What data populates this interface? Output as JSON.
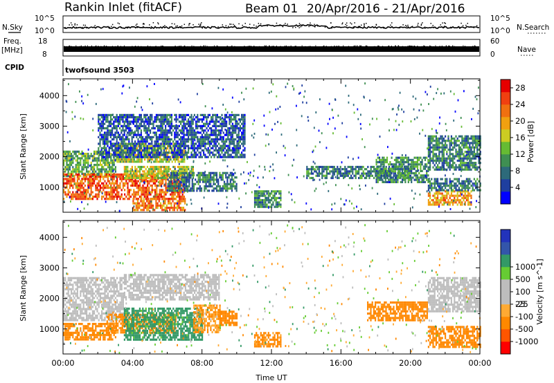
{
  "header": {
    "title": "Rankin Inlet (fitACF)",
    "beam": "Beam 01",
    "date_range": "20/Apr/2016 - 21/Apr/2016"
  },
  "params": {
    "nsky_label": "N.Sky",
    "nsky_ticks": [
      "10^5",
      "10^0"
    ],
    "nsearch_label": "N.Search",
    "nsearch_ticks": [
      "10^5",
      "10^0"
    ],
    "freq_label": "Freq.",
    "freq_unit": "[MHz]",
    "freq_ticks": [
      "18",
      "8"
    ],
    "nave_label": "Nave",
    "nave_ticks": [
      "60",
      "0"
    ],
    "cpid_label": "CPID",
    "cpid_value": "twofsound 3503"
  },
  "colors": {
    "power_scale": [
      "#0000ff",
      "#1f3f9f",
      "#2d6a7a",
      "#3f8f52",
      "#66bb33",
      "#cccc22",
      "#f0a010",
      "#f07010",
      "#f04010",
      "#e60000"
    ],
    "velocity_scale": [
      "#ff0000",
      "#ff5500",
      "#ff8800",
      "#ffaa33",
      "#bdbdbd",
      "#bdbdbd",
      "#66cc33",
      "#339966",
      "#3355aa",
      "#2233bb"
    ]
  },
  "chart_data": [
    {
      "type": "heatmap",
      "title": "Power",
      "xlabel": "",
      "ylabel": "Slant Range [km]",
      "xlim": [
        0,
        24
      ],
      "ylim": [
        180,
        4550
      ],
      "x_ticks": [
        "00:00",
        "04:00",
        "08:00",
        "12:00",
        "16:00",
        "20:00",
        "00:00"
      ],
      "x_tick_values": [
        0,
        4,
        8,
        12,
        16,
        20,
        24
      ],
      "y_ticks": [
        1000,
        2000,
        3000,
        4000
      ],
      "colorbar": {
        "label": "Power [dB]",
        "ticks": [
          4,
          8,
          12,
          16,
          20,
          24,
          28
        ],
        "range": [
          0,
          30
        ]
      },
      "regions": [
        {
          "x": [
            0.0,
            3.0
          ],
          "y": [
            1400,
            2200
          ],
          "value": 12
        },
        {
          "x": [
            0.0,
            7.0
          ],
          "y": [
            650,
            1450
          ],
          "value": 24
        },
        {
          "x": [
            3.5,
            7.5
          ],
          "y": [
            1300,
            1700
          ],
          "value": 16
        },
        {
          "x": [
            3.0,
            7.0
          ],
          "y": [
            1800,
            2450
          ],
          "value": 16
        },
        {
          "x": [
            6.0,
            10.0
          ],
          "y": [
            900,
            1500
          ],
          "value": 8
        },
        {
          "x": [
            2.0,
            10.5
          ],
          "y": [
            2000,
            3400
          ],
          "value": 6
        },
        {
          "x": [
            4.0,
            7.0
          ],
          "y": [
            250,
            650
          ],
          "value": 22
        },
        {
          "x": [
            11.0,
            12.5
          ],
          "y": [
            350,
            900
          ],
          "value": 10
        },
        {
          "x": [
            14.0,
            20.0
          ],
          "y": [
            1300,
            1700
          ],
          "value": 8
        },
        {
          "x": [
            18.0,
            21.0
          ],
          "y": [
            1200,
            2000
          ],
          "value": 10
        },
        {
          "x": [
            21.0,
            24.0
          ],
          "y": [
            1600,
            2700
          ],
          "value": 9
        },
        {
          "x": [
            21.0,
            23.5
          ],
          "y": [
            400,
            900
          ],
          "value": 20
        },
        {
          "x": [
            21.0,
            24.0
          ],
          "y": [
            900,
            1300
          ],
          "value": 8
        }
      ]
    },
    {
      "type": "heatmap",
      "title": "Velocity",
      "xlabel": "Time UT",
      "ylabel": "Slant Range [km]",
      "xlim": [
        0,
        24
      ],
      "ylim": [
        180,
        4550
      ],
      "x_ticks": [
        "00:00",
        "04:00",
        "08:00",
        "12:00",
        "16:00",
        "20:00",
        "00:00"
      ],
      "x_tick_values": [
        0,
        4,
        8,
        12,
        16,
        20,
        24
      ],
      "y_ticks": [
        1000,
        2000,
        3000,
        4000
      ],
      "colorbar": {
        "label": "Velocity [m s^-1]",
        "ticks": [
          -1000,
          -500,
          -100,
          -25,
          25,
          100,
          500,
          1000
        ]
      },
      "regions": [
        {
          "x": [
            0.0,
            3.5
          ],
          "y": [
            1300,
            2700
          ],
          "value": 0
        },
        {
          "x": [
            3.5,
            9.0
          ],
          "y": [
            2000,
            2800
          ],
          "value": 0
        },
        {
          "x": [
            0.0,
            3.0
          ],
          "y": [
            650,
            1200
          ],
          "value": -200
        },
        {
          "x": [
            2.5,
            6.5
          ],
          "y": [
            850,
            1500
          ],
          "value": -150
        },
        {
          "x": [
            3.5,
            8.0
          ],
          "y": [
            650,
            1700
          ],
          "value": 150
        },
        {
          "x": [
            7.5,
            9.0
          ],
          "y": [
            900,
            1800
          ],
          "value": -100
        },
        {
          "x": [
            9.0,
            10.0
          ],
          "y": [
            1100,
            1600
          ],
          "value": -200
        },
        {
          "x": [
            11.0,
            12.5
          ],
          "y": [
            400,
            900
          ],
          "value": -150
        },
        {
          "x": [
            17.5,
            21.0
          ],
          "y": [
            1300,
            1900
          ],
          "value": -300
        },
        {
          "x": [
            21.0,
            24.0
          ],
          "y": [
            400,
            1100
          ],
          "value": -300
        },
        {
          "x": [
            21.0,
            24.0
          ],
          "y": [
            1600,
            2700
          ],
          "value": 0
        }
      ]
    }
  ]
}
